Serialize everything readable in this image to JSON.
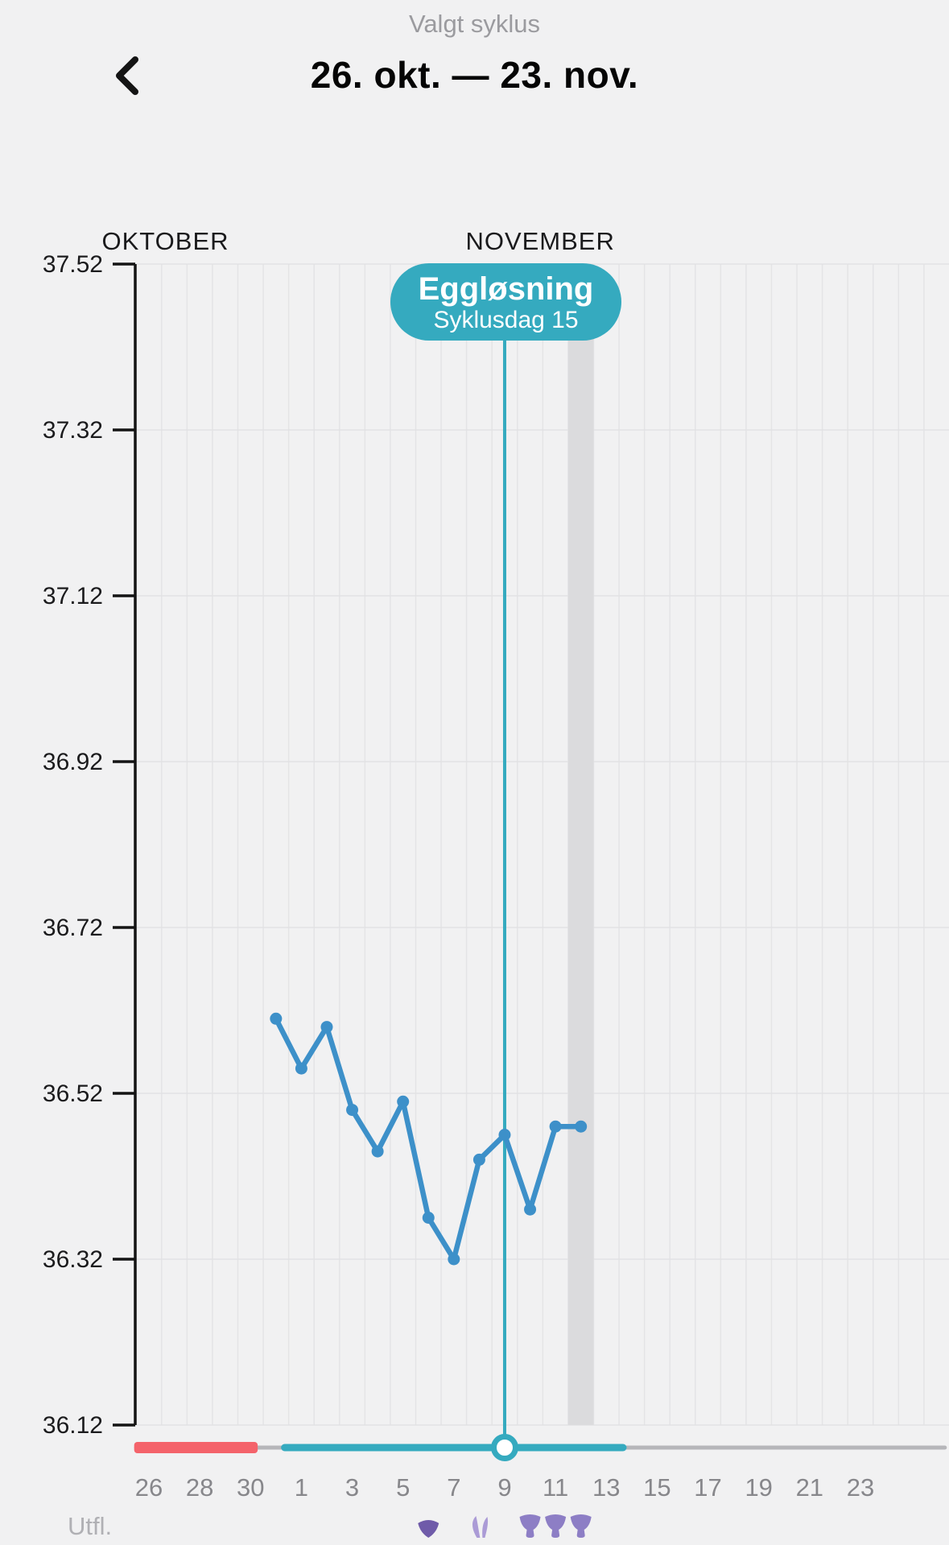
{
  "header": {
    "subtitle": "Valgt syklus",
    "title": "26. okt. — 23. nov.",
    "back_icon": "chevron-left"
  },
  "colors": {
    "background": "#f1f1f2",
    "grid_vertical": "#e4e4e6",
    "grid_horizontal": "#e2e2e4",
    "axis": "#141414",
    "y_label": "#1b1b1d",
    "month_label": "#1a1a1c",
    "day_label": "#87878b",
    "utfl_label": "#b0b0b4",
    "highlight_band": "#dbdbdd",
    "temperature_line": "#3d90c9",
    "teal_accent": "#35aabf",
    "period_red": "#f4636b",
    "slider_track": "#b6b6ba",
    "badge_text": "#ffffff",
    "icon_fan": "#6f5ba9",
    "icon_fan_stem": "#8d7ec5",
    "icon_petals": "#ab9bd6"
  },
  "chart_data": {
    "type": "line",
    "title": "",
    "y_axis": {
      "tick_labels": [
        "37.52",
        "37.32",
        "37.12",
        "36.92",
        "36.72",
        "36.52",
        "36.32",
        "36.12"
      ],
      "tick_values": [
        37.52,
        37.32,
        37.12,
        36.92,
        36.72,
        36.52,
        36.32,
        36.12
      ],
      "ylim": [
        36.12,
        37.52
      ],
      "grid": true
    },
    "x_axis": {
      "month_labels": [
        {
          "text": "OKTOBER",
          "center_day": 1.65
        },
        {
          "text": "NOVEMBER",
          "center_day": 16.4
        }
      ],
      "day_ticks": [
        {
          "day": 1,
          "label": "26"
        },
        {
          "day": 3,
          "label": "28"
        },
        {
          "day": 5,
          "label": "30"
        },
        {
          "day": 7,
          "label": "1"
        },
        {
          "day": 9,
          "label": "3"
        },
        {
          "day": 11,
          "label": "5"
        },
        {
          "day": 13,
          "label": "7"
        },
        {
          "day": 15,
          "label": "9"
        },
        {
          "day": 17,
          "label": "11"
        },
        {
          "day": 19,
          "label": "13"
        },
        {
          "day": 21,
          "label": "15"
        },
        {
          "day": 23,
          "label": "17"
        },
        {
          "day": 25,
          "label": "19"
        },
        {
          "day": 27,
          "label": "21"
        },
        {
          "day": 29,
          "label": "23"
        }
      ],
      "grid": true
    },
    "series": [
      {
        "name": "basal-temperature",
        "days": [
          6,
          7,
          8,
          9,
          10,
          11,
          12,
          13,
          14,
          15,
          16,
          17,
          18
        ],
        "values": [
          36.61,
          36.55,
          36.6,
          36.5,
          36.45,
          36.51,
          36.37,
          36.32,
          36.44,
          36.47,
          36.38,
          36.48,
          36.48
        ]
      }
    ],
    "ovulation": {
      "day": 15,
      "badge_title": "Eggløsning",
      "badge_subtitle": "Syklusdag 15"
    },
    "highlighted_day": 18,
    "slider": {
      "track_days": [
        0.42,
        32.4
      ],
      "period_days": [
        0.42,
        5.28
      ],
      "selected_days": [
        6.2,
        19.8
      ],
      "handle_day": 15
    },
    "utfl": {
      "label": "Utfl.",
      "entries": [
        {
          "day": 12,
          "icon": "fan"
        },
        {
          "day": 14,
          "icon": "petals-light"
        },
        {
          "day": 16,
          "icon": "fan-stem"
        },
        {
          "day": 17,
          "icon": "fan-stem"
        },
        {
          "day": 18,
          "icon": "fan-stem"
        }
      ]
    }
  }
}
